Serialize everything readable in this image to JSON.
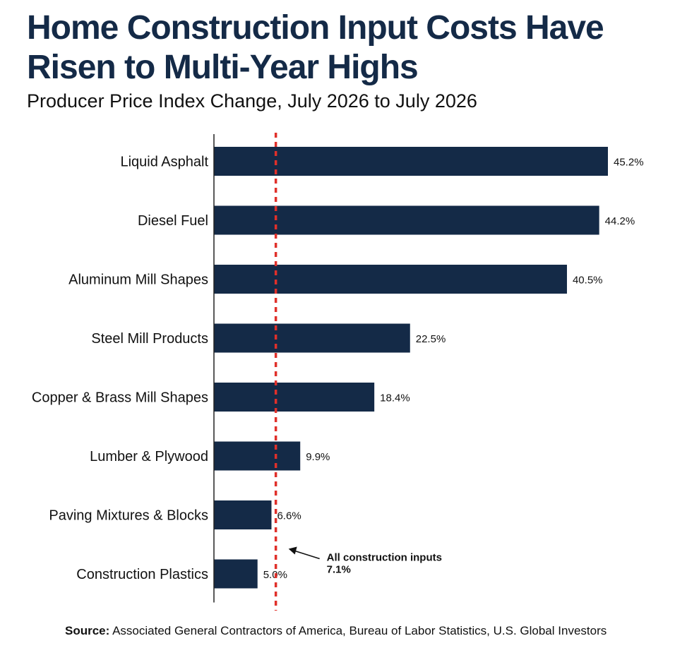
{
  "title_line1": "Home Construction Input Costs Have",
  "title_line2": "Risen to Multi-Year Highs",
  "subtitle": "Producer Price Index Change, July 2026 to July 2026",
  "source_label": "Source:",
  "source_text": " Associated General Contractors of America, Bureau of Labor Statistics, U.S. Global Investors",
  "colors": {
    "bar": "#142a47",
    "reference_line": "#e0302a",
    "title": "#142a47"
  },
  "chart_data": {
    "type": "bar",
    "orientation": "horizontal",
    "categories": [
      "Liquid Asphalt",
      "Diesel Fuel",
      "Aluminum Mill Shapes",
      "Steel Mill Products",
      "Copper & Brass Mill Shapes",
      "Lumber & Plywood",
      "Paving Mixtures & Blocks",
      "Construction Plastics"
    ],
    "values": [
      45.2,
      44.2,
      40.5,
      22.5,
      18.4,
      9.9,
      6.6,
      5.0
    ],
    "data_labels": [
      "45.2%",
      "44.2%",
      "40.5%",
      "22.5%",
      "18.4%",
      "9.9%",
      "6.6%",
      "5.0%"
    ],
    "xlim": [
      0,
      46
    ],
    "reference_line": {
      "value": 7.1,
      "style": "dotted",
      "label_line1": "All construction inputs",
      "label_line2": "7.1%"
    }
  }
}
